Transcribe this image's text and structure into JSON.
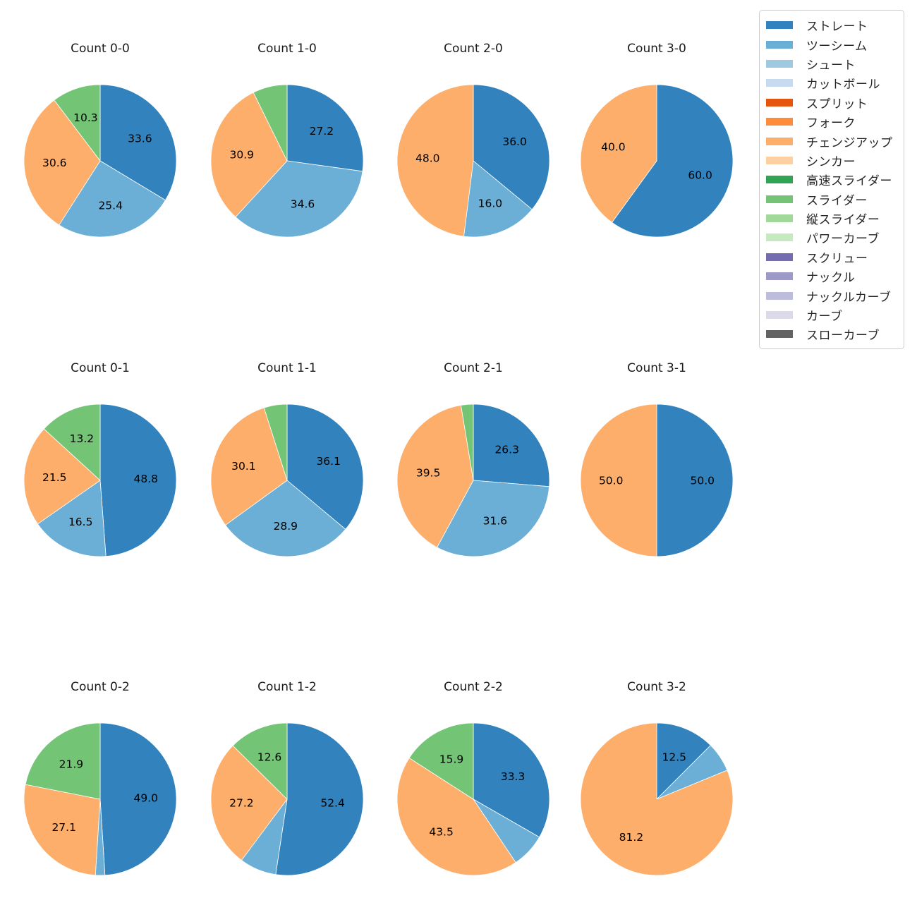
{
  "figure": {
    "background": "#ffffff"
  },
  "chart_data": {
    "type": "pie",
    "layout": {
      "grid_rows": 3,
      "grid_cols": 4,
      "legend_position": "upper right",
      "start_angle": "top",
      "direction": "clockwise",
      "label_distance_fraction": 0.6
    },
    "label_min_percent": 10,
    "label_format": "one-decimal",
    "legend_entries": [
      {
        "label": "ストレート",
        "color": "#3182bd"
      },
      {
        "label": "ツーシーム",
        "color": "#6baed6"
      },
      {
        "label": "シュート",
        "color": "#9ecae1"
      },
      {
        "label": "カットボール",
        "color": "#c6dbef"
      },
      {
        "label": "スプリット",
        "color": "#e6550d"
      },
      {
        "label": "フォーク",
        "color": "#fd8d3c"
      },
      {
        "label": "チェンジアップ",
        "color": "#fdae6b"
      },
      {
        "label": "シンカー",
        "color": "#fdd0a2"
      },
      {
        "label": "高速スライダー",
        "color": "#31a354"
      },
      {
        "label": "スライダー",
        "color": "#74c476"
      },
      {
        "label": "縦スライダー",
        "color": "#a1d99b"
      },
      {
        "label": "パワーカーブ",
        "color": "#c7e9c0"
      },
      {
        "label": "スクリュー",
        "color": "#756bb1"
      },
      {
        "label": "ナックル",
        "color": "#9e9ac8"
      },
      {
        "label": "ナックルカーブ",
        "color": "#bcbddc"
      },
      {
        "label": "カーブ",
        "color": "#dadaeb"
      },
      {
        "label": "スローカーブ",
        "color": "#636363"
      }
    ],
    "pies": [
      {
        "title": "Count 0-0",
        "slices": [
          {
            "label": "ストレート",
            "value": 33.6,
            "color": "#3182bd"
          },
          {
            "label": "ツーシーム",
            "value": 25.4,
            "color": "#6baed6"
          },
          {
            "label": "チェンジアップ",
            "value": 30.6,
            "color": "#fdae6b"
          },
          {
            "label": "スライダー",
            "value": 10.3,
            "color": "#74c476"
          }
        ]
      },
      {
        "title": "Count 1-0",
        "slices": [
          {
            "label": "ストレート",
            "value": 27.2,
            "color": "#3182bd"
          },
          {
            "label": "ツーシーム",
            "value": 34.6,
            "color": "#6baed6"
          },
          {
            "label": "チェンジアップ",
            "value": 30.9,
            "color": "#fdae6b"
          },
          {
            "label": "スライダー",
            "value": 7.3,
            "color": "#74c476"
          }
        ]
      },
      {
        "title": "Count 2-0",
        "slices": [
          {
            "label": "ストレート",
            "value": 36.0,
            "color": "#3182bd"
          },
          {
            "label": "ツーシーム",
            "value": 16.0,
            "color": "#6baed6"
          },
          {
            "label": "チェンジアップ",
            "value": 48.0,
            "color": "#fdae6b"
          }
        ]
      },
      {
        "title": "Count 3-0",
        "slices": [
          {
            "label": "ストレート",
            "value": 60.0,
            "color": "#3182bd"
          },
          {
            "label": "チェンジアップ",
            "value": 40.0,
            "color": "#fdae6b"
          }
        ]
      },
      {
        "title": "Count 0-1",
        "slices": [
          {
            "label": "ストレート",
            "value": 48.8,
            "color": "#3182bd"
          },
          {
            "label": "ツーシーム",
            "value": 16.5,
            "color": "#6baed6"
          },
          {
            "label": "チェンジアップ",
            "value": 21.5,
            "color": "#fdae6b"
          },
          {
            "label": "スライダー",
            "value": 13.2,
            "color": "#74c476"
          }
        ]
      },
      {
        "title": "Count 1-1",
        "slices": [
          {
            "label": "ストレート",
            "value": 36.1,
            "color": "#3182bd"
          },
          {
            "label": "ツーシーム",
            "value": 28.9,
            "color": "#6baed6"
          },
          {
            "label": "チェンジアップ",
            "value": 30.1,
            "color": "#fdae6b"
          },
          {
            "label": "スライダー",
            "value": 4.9,
            "color": "#74c476"
          }
        ]
      },
      {
        "title": "Count 2-1",
        "slices": [
          {
            "label": "ストレート",
            "value": 26.3,
            "color": "#3182bd"
          },
          {
            "label": "ツーシーム",
            "value": 31.6,
            "color": "#6baed6"
          },
          {
            "label": "チェンジアップ",
            "value": 39.5,
            "color": "#fdae6b"
          },
          {
            "label": "スライダー",
            "value": 2.6,
            "color": "#74c476"
          }
        ]
      },
      {
        "title": "Count 3-1",
        "slices": [
          {
            "label": "ストレート",
            "value": 50.0,
            "color": "#3182bd"
          },
          {
            "label": "チェンジアップ",
            "value": 50.0,
            "color": "#fdae6b"
          }
        ]
      },
      {
        "title": "Count 0-2",
        "slices": [
          {
            "label": "ストレート",
            "value": 49.0,
            "color": "#3182bd"
          },
          {
            "label": "ツーシーム",
            "value": 2.0,
            "color": "#6baed6"
          },
          {
            "label": "チェンジアップ",
            "value": 27.1,
            "color": "#fdae6b"
          },
          {
            "label": "スライダー",
            "value": 21.9,
            "color": "#74c476"
          }
        ]
      },
      {
        "title": "Count 1-2",
        "slices": [
          {
            "label": "ストレート",
            "value": 52.4,
            "color": "#3182bd"
          },
          {
            "label": "ツーシーム",
            "value": 7.8,
            "color": "#6baed6"
          },
          {
            "label": "チェンジアップ",
            "value": 27.2,
            "color": "#fdae6b"
          },
          {
            "label": "スライダー",
            "value": 12.6,
            "color": "#74c476"
          }
        ]
      },
      {
        "title": "Count 2-2",
        "slices": [
          {
            "label": "ストレート",
            "value": 33.3,
            "color": "#3182bd"
          },
          {
            "label": "ツーシーム",
            "value": 7.3,
            "color": "#6baed6"
          },
          {
            "label": "チェンジアップ",
            "value": 43.5,
            "color": "#fdae6b"
          },
          {
            "label": "スライダー",
            "value": 15.9,
            "color": "#74c476"
          }
        ]
      },
      {
        "title": "Count 3-2",
        "slices": [
          {
            "label": "ストレート",
            "value": 12.5,
            "color": "#3182bd"
          },
          {
            "label": "ツーシーム",
            "value": 6.3,
            "color": "#6baed6"
          },
          {
            "label": "チェンジアップ",
            "value": 81.2,
            "color": "#fdae6b"
          }
        ]
      }
    ]
  }
}
